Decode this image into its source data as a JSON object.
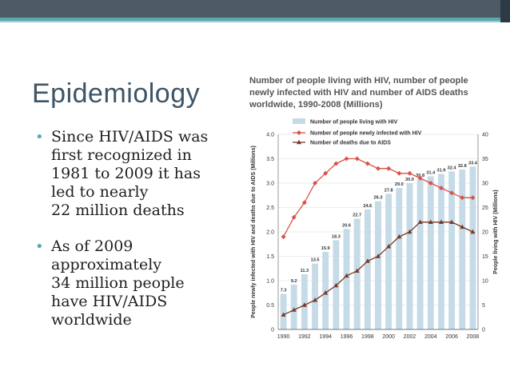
{
  "slide": {
    "title": "Epidemiology",
    "bullets": [
      {
        "lines": [
          "Since HIV/AIDS was",
          "first recognized in",
          "1981 to 2009 it has",
          "led to nearly",
          "22 million deaths"
        ]
      },
      {
        "lines": [
          "As of 2009",
          "approximately",
          "34 million people",
          "have HIV/AIDS",
          "worldwide"
        ]
      }
    ]
  },
  "colors": {
    "bar": "#c5dbe8",
    "newly_infected": "#d9534a",
    "deaths": "#7a3a28",
    "title_bar": "#4d5965",
    "accent": "#5aa7b0"
  },
  "chart_data": {
    "type": "bar+line",
    "title": [
      "Number of people living with HIV, number of people",
      "newly infected with HIV and number of AIDS deaths",
      "worldwide, 1990-2008 (Millions)"
    ],
    "ylabel_left": "People newly infected with HIV and deaths due to AIDS (Millions)",
    "ylabel_right": "People living with HIV (Millions)",
    "ylim_left": [
      0,
      4.0
    ],
    "ylim_right": [
      0,
      40
    ],
    "yticks_left": [
      "0",
      "0.5",
      "1.0",
      "1.5",
      "2.0",
      "2.5",
      "3.0",
      "3.5",
      "4.0"
    ],
    "yticks_right": [
      "0",
      "5",
      "10",
      "15",
      "20",
      "25",
      "30",
      "35",
      "40"
    ],
    "x": [
      1990,
      1991,
      1992,
      1993,
      1994,
      1995,
      1996,
      1997,
      1998,
      1999,
      2000,
      2001,
      2002,
      2003,
      2004,
      2005,
      2006,
      2007,
      2008
    ],
    "xtick_labels": [
      "1990",
      "1992",
      "1994",
      "1996",
      "1998",
      "2000",
      "2002",
      "2004",
      "2006",
      "2008"
    ],
    "legend": [
      "Number of people living with HIV",
      "Number of people newly infected with HIV",
      "Number of deaths due to AIDS"
    ],
    "series": [
      {
        "name": "Number of people living with HIV",
        "kind": "bar",
        "axis": "right",
        "values": [
          7.3,
          9.2,
          11.3,
          13.5,
          15.9,
          18.3,
          20.6,
          22.7,
          24.6,
          26.3,
          27.8,
          29.0,
          30.0,
          30.8,
          31.4,
          31.9,
          32.4,
          32.8,
          33.4
        ],
        "labels": [
          "7.3",
          "9.2",
          "11.3",
          "13.5",
          "15.9",
          "18.3",
          "20.6",
          "22.7",
          "24.6",
          "26.3",
          "27.8",
          "29.0",
          "30.0",
          "30.8",
          "31.4",
          "31.9",
          "32.4",
          "32.8",
          "33.4"
        ]
      },
      {
        "name": "Number of people newly infected with HIV",
        "kind": "line",
        "axis": "left",
        "values": [
          1.9,
          2.3,
          2.6,
          3.0,
          3.2,
          3.4,
          3.5,
          3.5,
          3.4,
          3.3,
          3.3,
          3.2,
          3.2,
          3.1,
          3.0,
          2.9,
          2.8,
          2.7,
          2.7
        ]
      },
      {
        "name": "Number of deaths due to AIDS",
        "kind": "line",
        "axis": "left",
        "values": [
          0.3,
          0.4,
          0.5,
          0.6,
          0.75,
          0.9,
          1.1,
          1.2,
          1.4,
          1.5,
          1.7,
          1.9,
          2.0,
          2.2,
          2.2,
          2.2,
          2.2,
          2.1,
          2.0
        ]
      }
    ]
  }
}
